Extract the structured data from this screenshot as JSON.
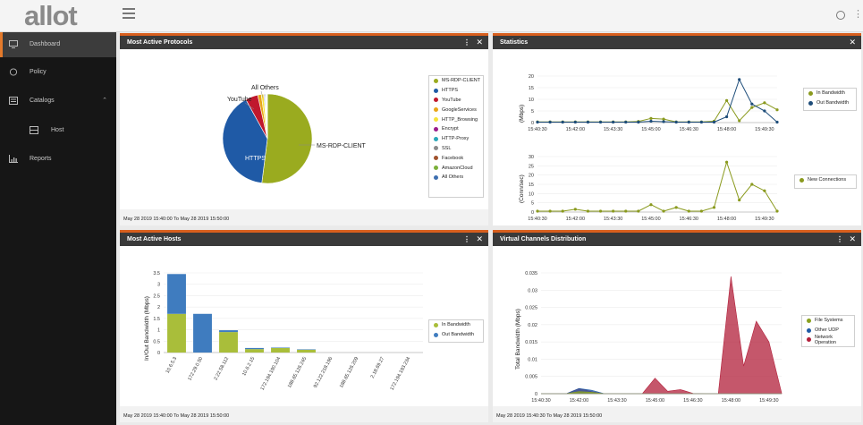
{
  "topbar": {
    "logo": "allot"
  },
  "sidebar": {
    "items": [
      {
        "label": "Dashboard",
        "icon": "monitor-icon",
        "active": true
      },
      {
        "label": "Policy",
        "icon": "circle-icon"
      },
      {
        "label": "Catalogs",
        "icon": "catalog-icon",
        "expanded": true
      },
      {
        "label": "Host",
        "icon": "host-icon",
        "child": true
      },
      {
        "label": "Reports",
        "icon": "reports-icon"
      }
    ]
  },
  "panels": {
    "protocols": {
      "title": "Most Active Protocols",
      "footer": "May 28 2019 15:40:00 To May 28 2019 15:50:00",
      "pie_labels": {
        "main": "MS-RDP-CLIENT",
        "https": "HTTPS",
        "youtube": "YouTube",
        "others": "All Others"
      },
      "legend": [
        {
          "name": "MS-RDP-CLIENT",
          "color": "#9aab1f"
        },
        {
          "name": "HTTPS",
          "color": "#1f5aa6"
        },
        {
          "name": "YouTube",
          "color": "#c0182d"
        },
        {
          "name": "GoogleServices",
          "color": "#e8a619"
        },
        {
          "name": "HTTP_Browsing",
          "color": "#f6e33c"
        },
        {
          "name": "Encrypt",
          "color": "#9b1b8c"
        },
        {
          "name": "HTTP-Proxy",
          "color": "#2aa7b8"
        },
        {
          "name": "SSL",
          "color": "#8b8b8b"
        },
        {
          "name": "Facebook",
          "color": "#a0522d"
        },
        {
          "name": "AmazonCloud",
          "color": "#7bb03a"
        },
        {
          "name": "All Others",
          "color": "#3e6fb0"
        }
      ]
    },
    "statistics": {
      "title": "Statistics",
      "legend1": [
        {
          "name": "In Bandwidth",
          "color": "#8a9a1e"
        },
        {
          "name": "Out Bandwidth",
          "color": "#1e4d7a"
        }
      ],
      "legend2": [
        {
          "name": "New Connections",
          "color": "#8a9a1e"
        }
      ],
      "ylabel1": "(Mbps)",
      "ylabel2": "(Conn/sec)"
    },
    "hosts": {
      "title": "Most Active Hosts",
      "footer": "May 28 2019 15:40:00 To May 28 2019 15:50:00",
      "ylabel": "In/Out Bandwidth (Mbps)",
      "legend": [
        {
          "name": "In Bandwidth",
          "color": "#a9be3a"
        },
        {
          "name": "Out Bandwidth",
          "color": "#3f7cbf"
        }
      ]
    },
    "virtual": {
      "title": "Virtual Channels Distribution",
      "footer": "May 28 2019 15:40:30 To May 28 2019 15:50:00",
      "ylabel": "Total Bandwidth (Mbps)",
      "legend": [
        {
          "name": "File Systems",
          "color": "#8aa11f"
        },
        {
          "name": "Other UDP",
          "color": "#1f5aa6"
        },
        {
          "name": "Network Operation",
          "color": "#b21f3a"
        }
      ]
    }
  },
  "chart_data": [
    {
      "type": "pie",
      "title": "Most Active Protocols",
      "categories": [
        "MS-RDP-CLIENT",
        "HTTPS",
        "YouTube",
        "GoogleServices",
        "HTTP_Browsing",
        "Encrypt",
        "HTTP-Proxy",
        "SSL",
        "Facebook",
        "AmazonCloud",
        "All Others"
      ],
      "values": [
        52,
        40,
        4.5,
        1.3,
        0.9,
        0.3,
        0.3,
        0.2,
        0.2,
        0.2,
        0.1
      ]
    },
    {
      "type": "line",
      "title": "Statistics",
      "x": [
        "15:40:30",
        "15:41:00",
        "15:41:30",
        "15:42:00",
        "15:42:30",
        "15:43:00",
        "15:43:30",
        "15:44:00",
        "15:44:30",
        "15:45:00",
        "15:45:30",
        "15:46:00",
        "15:46:30",
        "15:47:00",
        "15:47:30",
        "15:48:00",
        "15:48:30",
        "15:49:00",
        "15:49:30",
        "15:50:00"
      ],
      "xticks": [
        "15:40:30",
        "15:42:00",
        "15:43:30",
        "15:45:00",
        "15:46:30",
        "15:48:00",
        "15:49:30"
      ],
      "ylabel": "(Mbps)",
      "ylim": [
        0,
        20
      ],
      "series": [
        {
          "name": "In Bandwidth",
          "values": [
            0.3,
            0.3,
            0.3,
            0.3,
            0.3,
            0.3,
            0.3,
            0.3,
            0.5,
            1.8,
            1.5,
            0.3,
            0.3,
            0.3,
            0.6,
            9.5,
            0.8,
            6.5,
            8.5,
            5.5
          ]
        },
        {
          "name": "Out Bandwidth",
          "values": [
            0.2,
            0.2,
            0.2,
            0.2,
            0.2,
            0.2,
            0.2,
            0.2,
            0.2,
            0.6,
            0.4,
            0.2,
            0.2,
            0.2,
            0.2,
            2.5,
            18.5,
            8.0,
            5.0,
            0.2
          ]
        }
      ]
    },
    {
      "type": "line",
      "x": [
        "15:40:30",
        "15:41:00",
        "15:41:30",
        "15:42:00",
        "15:42:30",
        "15:43:00",
        "15:43:30",
        "15:44:00",
        "15:44:30",
        "15:45:00",
        "15:45:30",
        "15:46:00",
        "15:46:30",
        "15:47:00",
        "15:47:30",
        "15:48:00",
        "15:48:30",
        "15:49:00",
        "15:49:30",
        "15:50:00"
      ],
      "xticks": [
        "15:40:30",
        "15:42:00",
        "15:43:30",
        "15:45:00",
        "15:46:30",
        "15:48:00",
        "15:49:30"
      ],
      "ylabel": "(Conn/sec)",
      "ylim": [
        0,
        30
      ],
      "series": [
        {
          "name": "New Connections",
          "values": [
            0.5,
            0.5,
            0.5,
            1.5,
            0.5,
            0.5,
            0.5,
            0.5,
            0.5,
            4.0,
            0.5,
            2.5,
            0.5,
            0.5,
            2.5,
            27.0,
            6.5,
            15.0,
            11.5,
            0.5
          ]
        }
      ]
    },
    {
      "type": "bar",
      "title": "Most Active Hosts",
      "categories": [
        "10.6.5.3",
        "172.29.0.50",
        "2.22.58.112",
        "10.6.2.15",
        "172.194.190.104",
        "188.65.126.245",
        "92.122.218.196",
        "188.65.126.209",
        "2.18.69.27",
        "172.194.193.234"
      ],
      "ylabel": "In/Out Bandwidth (Mbps)",
      "ylim": [
        0,
        3.5
      ],
      "series": [
        {
          "name": "In Bandwidth",
          "values": [
            1.7,
            0,
            0.9,
            0.15,
            0.2,
            0.12,
            0,
            0,
            0,
            0
          ]
        },
        {
          "name": "Out Bandwidth",
          "values": [
            1.75,
            1.7,
            0.08,
            0.05,
            0.02,
            0.02,
            0,
            0,
            0,
            0
          ]
        }
      ]
    },
    {
      "type": "area",
      "title": "Virtual Channels Distribution",
      "x": [
        "15:40:30",
        "15:41:00",
        "15:41:30",
        "15:42:00",
        "15:42:30",
        "15:43:00",
        "15:43:30",
        "15:44:00",
        "15:44:30",
        "15:45:00",
        "15:45:30",
        "15:46:00",
        "15:46:30",
        "15:47:00",
        "15:47:30",
        "15:48:00",
        "15:48:30",
        "15:49:00",
        "15:49:30",
        "15:50:00"
      ],
      "xticks": [
        "15:40:30",
        "15:42:00",
        "15:43:30",
        "15:45:00",
        "15:46:30",
        "15:48:00",
        "15:49:30"
      ],
      "ylabel": "Total Bandwidth (Mbps)",
      "ylim": [
        0,
        0.035
      ],
      "series": [
        {
          "name": "File Systems",
          "values": [
            0,
            0,
            0,
            0.0006,
            0.0004,
            0,
            0,
            0,
            0,
            0,
            0,
            0,
            0,
            0,
            0,
            0,
            0,
            0,
            0,
            0
          ]
        },
        {
          "name": "Other UDP",
          "values": [
            0,
            0,
            0,
            0.0015,
            0.001,
            0,
            0,
            0,
            0,
            0,
            0,
            0,
            0,
            0,
            0,
            0,
            0,
            0,
            0,
            0
          ]
        },
        {
          "name": "Network Operation",
          "values": [
            0,
            0,
            0,
            0.0015,
            0.0006,
            0,
            0,
            0,
            0,
            0.0045,
            0.0007,
            0.0012,
            0.0001,
            0,
            0,
            0.034,
            0.008,
            0.021,
            0.015,
            0.0002
          ]
        }
      ]
    }
  ]
}
